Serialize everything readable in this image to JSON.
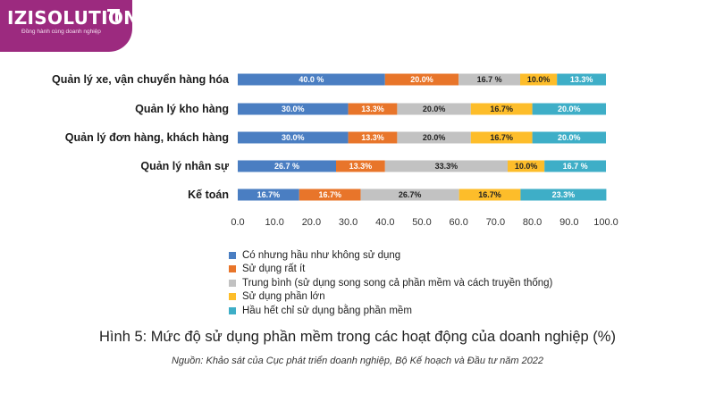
{
  "logo": {
    "name": "IZISOLUTION",
    "tagline": "Đồng hành cùng doanh nghiệp",
    "icon": "izi-mark-icon"
  },
  "chart_data": {
    "type": "bar",
    "orientation": "horizontal",
    "stacked": true,
    "categories": [
      "Quản lý xe, vận chuyển hàng hóa",
      "Quản lý kho hàng",
      "Quản lý đơn hàng, khách hàng",
      "Quản lý nhân sự",
      "Kế toán"
    ],
    "series": [
      {
        "name": "Có nhưng hầu như không sử dụng",
        "color": "#4a7ec2",
        "values": [
          40.0,
          30.0,
          30.0,
          26.7,
          16.7
        ],
        "labels": [
          "40.0 %",
          "30.0%",
          "30.0%",
          "26.7 %",
          "16.7%"
        ]
      },
      {
        "name": "Sử dụng rất ít",
        "color": "#e8752a",
        "values": [
          20.0,
          13.3,
          13.3,
          13.3,
          16.7
        ],
        "labels": [
          "20.0%",
          "13.3%",
          "13.3%",
          "13.3%",
          "16.7%"
        ]
      },
      {
        "name": "Trung bình (sử dụng song song cả phần mềm và cách truyền thống)",
        "color": "#c2c2c2",
        "values": [
          16.7,
          20.0,
          20.0,
          33.3,
          26.7
        ],
        "labels": [
          "16.7 %",
          "20.0%",
          "20.0%",
          "33.3%",
          "26.7%"
        ]
      },
      {
        "name": "Sử dụng phần lớn",
        "color": "#fdbd2a",
        "values": [
          10.0,
          16.7,
          16.7,
          10.0,
          16.7
        ],
        "labels": [
          "10.0%",
          "16.7%",
          "16.7%",
          "10.0%",
          "16.7%"
        ]
      },
      {
        "name": "Hầu hết chỉ sử dụng bằng phần mềm",
        "color": "#3eaec7",
        "values": [
          13.3,
          20.0,
          20.0,
          16.7,
          23.3
        ],
        "labels": [
          "13.3%",
          "20.0%",
          "20.0%",
          "16.7 %",
          "23.3%"
        ]
      }
    ],
    "xlim": [
      0,
      100
    ],
    "xticks": [
      "0.0",
      "10.0",
      "20.0",
      "30.0",
      "40.0",
      "50.0",
      "60.0",
      "70.0",
      "80.0",
      "90.0",
      "100.0"
    ],
    "grid": false,
    "legend_position": "bottom"
  },
  "caption": "Hình 5: Mức độ sử dụng phần mềm trong các hoạt động của doanh nghiệp (%)",
  "source": "Nguồn: Khảo sát của Cục phát triển doanh nghiệp, Bộ Kế hoạch và Đầu tư năm 2022"
}
